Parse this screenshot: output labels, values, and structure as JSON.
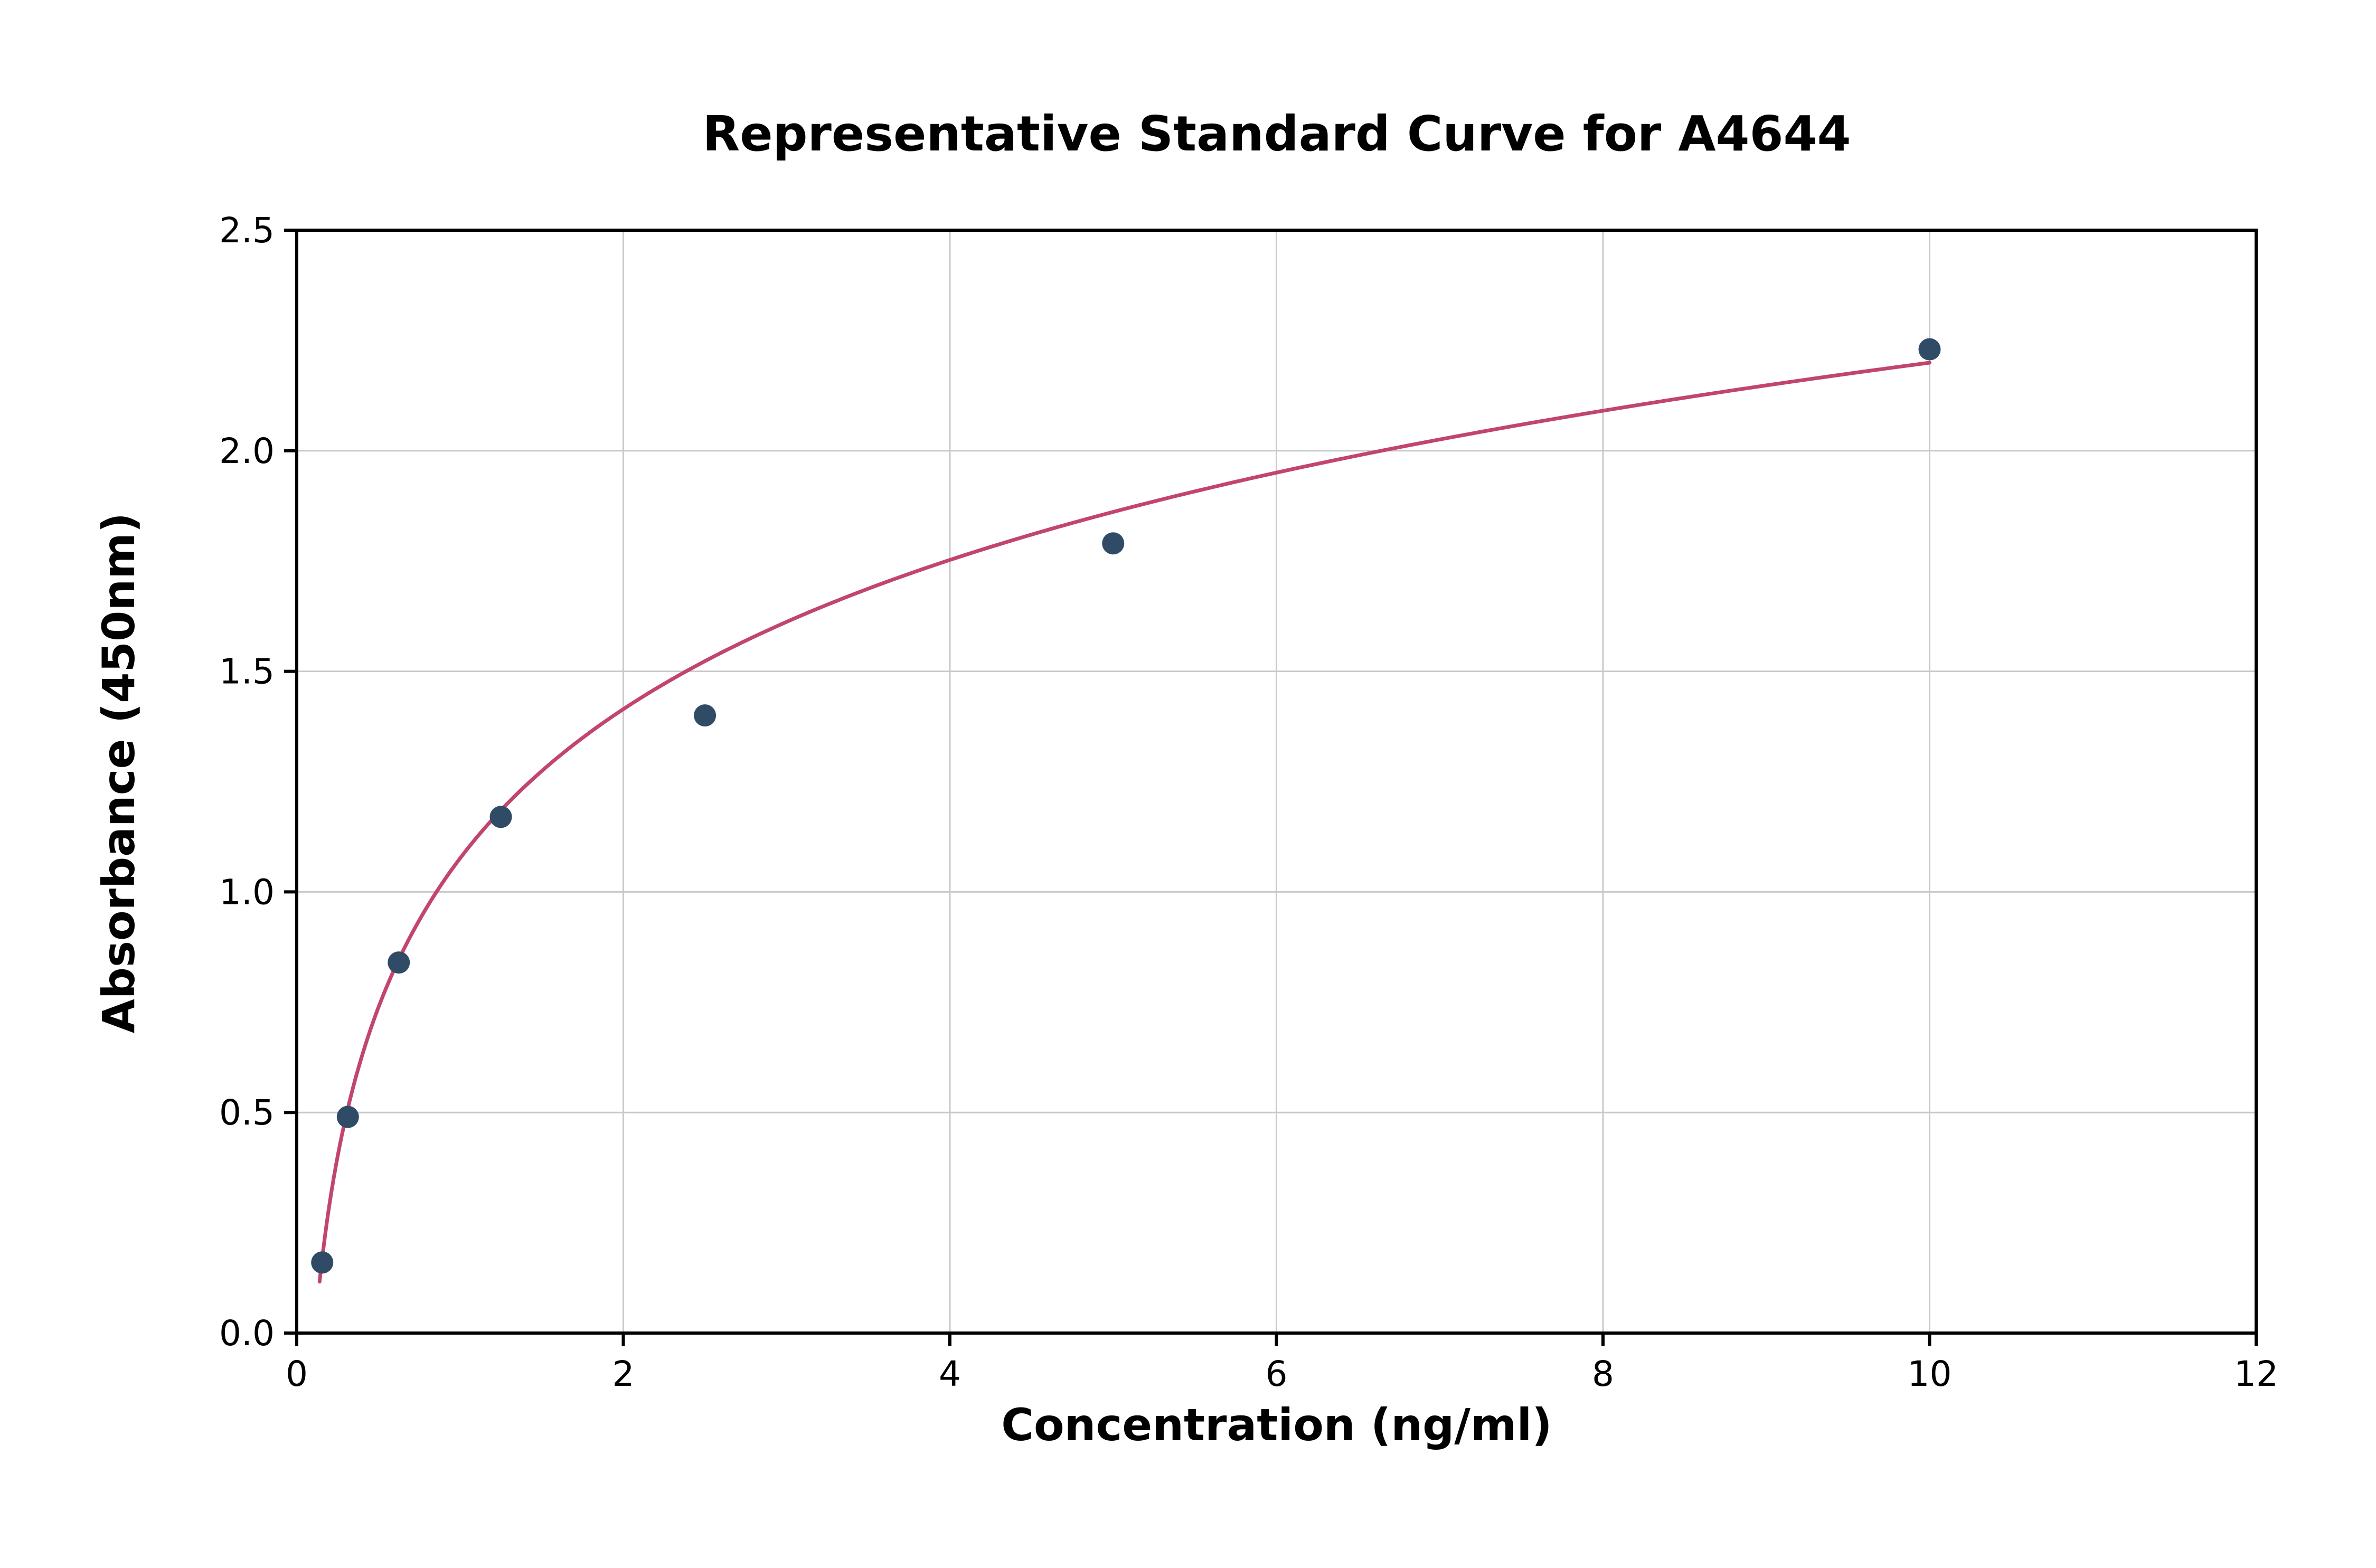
{
  "chart_data": {
    "type": "scatter",
    "title": "Representative Standard Curve for A4644",
    "xlabel": "Concentration (ng/ml)",
    "ylabel": "Absorbance (450nm)",
    "xlim": [
      0,
      12
    ],
    "ylim": [
      0.0,
      2.5
    ],
    "x_ticks": [
      0,
      2,
      4,
      6,
      8,
      10,
      12
    ],
    "y_ticks": [
      0.0,
      0.5,
      1.0,
      1.5,
      2.0,
      2.5
    ],
    "grid": true,
    "legend": "none",
    "points": {
      "x": [
        0.156,
        0.313,
        0.625,
        1.25,
        2.5,
        5,
        10
      ],
      "y": [
        0.16,
        0.49,
        0.84,
        1.17,
        1.4,
        1.79,
        2.23
      ]
    },
    "fit_curve": {
      "type": "logarithmic",
      "a": 1.076,
      "b": 0.488,
      "x_start": 0.14,
      "x_end": 10.0
    },
    "colors": {
      "point": "#2F4B66",
      "curve": "#C2456E",
      "grid": "#C9C9C9",
      "frame": "#000000",
      "text": "#000000"
    }
  }
}
